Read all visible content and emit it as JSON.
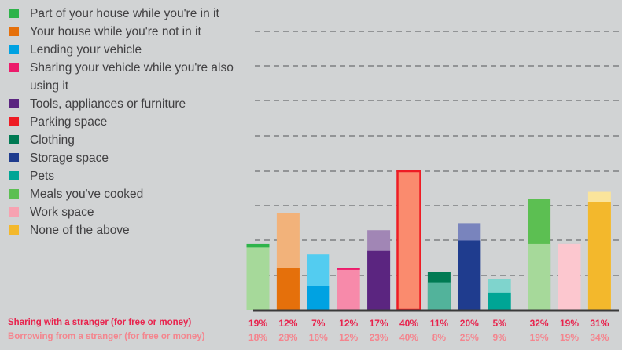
{
  "legend": [
    {
      "label": "Part of your house while you're in it",
      "color": "#2eb34a"
    },
    {
      "label": "Your house while you're not in it",
      "color": "#e5700b"
    },
    {
      "label": "Lending your vehicle",
      "color": "#00a2e2"
    },
    {
      "label": "Sharing your vehicle while you're also using it",
      "color": "#ec1b6b"
    },
    {
      "label": "Tools, appliances or furniture",
      "color": "#5b2580"
    },
    {
      "label": "Parking space",
      "color": "#ee1c24"
    },
    {
      "label": "Clothing",
      "color": "#007a53"
    },
    {
      "label": "Storage space",
      "color": "#1f3c8e"
    },
    {
      "label": "Pets",
      "color": "#00a595"
    },
    {
      "label": "Meals you've cooked",
      "color": "#5cbf52"
    },
    {
      "label": "Work space",
      "color": "#f7a2b1"
    },
    {
      "label": "None of the above",
      "color": "#f3b82c"
    }
  ],
  "rows": {
    "sharing_label": "Sharing with a stranger (for free or money)",
    "borrowing_label": "Borrowing from a stranger (for free or money)"
  },
  "chart_data": {
    "type": "bar",
    "title": "",
    "xlabel": "",
    "ylabel": "",
    "ylim": [
      0,
      40
    ],
    "grid": true,
    "legend_position": "left",
    "categories": [
      "Part of your house while you're in it",
      "Your house while you're not in it",
      "Lending your vehicle",
      "Sharing your vehicle while you're also using it",
      "Tools, appliances or furniture",
      "Parking space",
      "Clothing",
      "Storage space",
      "Pets",
      "Meals you've cooked",
      "Work space",
      "None of the above"
    ],
    "series": [
      {
        "name": "Sharing with a stranger (for free or money)",
        "values": [
          19,
          12,
          7,
          12,
          17,
          40,
          11,
          20,
          5,
          32,
          19,
          31
        ],
        "labels": [
          "19%",
          "12%",
          "7%",
          "12%",
          "17%",
          "40%",
          "11%",
          "20%",
          "5%",
          "32%",
          "19%",
          "31%"
        ]
      },
      {
        "name": "Borrowing from a stranger (for free or money)",
        "values": [
          18,
          28,
          16,
          12,
          23,
          40,
          8,
          25,
          9,
          19,
          19,
          34
        ],
        "labels": [
          "18%",
          "28%",
          "16%",
          "12%",
          "23%",
          "40%",
          "8%",
          "25%",
          "9%",
          "19%",
          "19%",
          "34%"
        ]
      }
    ],
    "colors": {
      "dark": [
        "#2eb34a",
        "#e5700b",
        "#00a2e2",
        "#ec1b6b",
        "#5b2580",
        "#ee1c24",
        "#007a53",
        "#1f3c8e",
        "#00a595",
        "#5cbf52",
        "#f7a2b1",
        "#f3b82c"
      ],
      "light": [
        "#a6d99a",
        "#f2b27a",
        "#53ccf0",
        "#f78aaa",
        "#a186b5",
        "#fa8b6e",
        "#52b39b",
        "#7984bd",
        "#7fd4cd",
        "#a6d99a",
        "#fcc7cf",
        "#fae49b"
      ]
    }
  }
}
